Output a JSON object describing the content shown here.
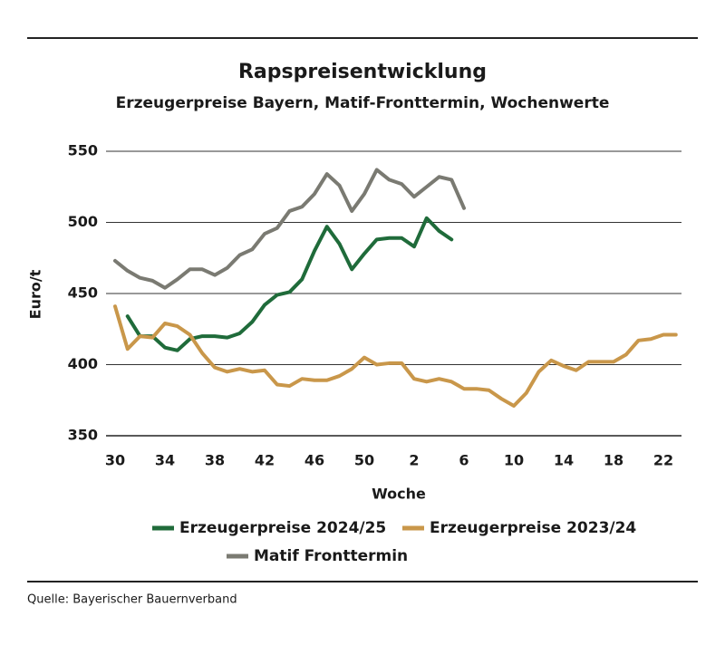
{
  "chart_data": {
    "type": "line",
    "title": "Rapspreisentwicklung",
    "subtitle": "Erzeugerpreise Bayern, Matif-Fronttermin, Wochenwerte",
    "y_label": "Euro/t",
    "x_label": "Woche",
    "source": "Quelle: Bayerischer Bauernverband",
    "categories": [
      30,
      null,
      null,
      null,
      34,
      null,
      null,
      null,
      38,
      null,
      null,
      null,
      42,
      null,
      null,
      null,
      46,
      null,
      null,
      null,
      50,
      null,
      null,
      null,
      2,
      null,
      null,
      null,
      6,
      null,
      null,
      null,
      10,
      null,
      null,
      null,
      14,
      null,
      null,
      null,
      18,
      null,
      null,
      null,
      22,
      null
    ],
    "series": [
      {
        "name": "Erzeugerpreise 2024/25",
        "color": "#1f6b3a",
        "values": [
          null,
          434,
          420,
          420,
          412,
          410,
          418,
          420,
          420,
          419,
          422,
          430,
          442,
          449,
          451,
          460,
          480,
          497,
          485,
          467,
          478,
          488,
          489,
          489,
          483,
          503,
          494,
          488,
          null,
          null,
          null,
          null,
          null,
          null,
          null,
          null,
          null,
          null,
          null,
          null,
          null,
          null,
          null,
          null,
          null,
          null
        ]
      },
      {
        "name": "Erzeugerpreise 2023/24",
        "color": "#c9974a",
        "values": [
          441,
          411,
          420,
          419,
          429,
          427,
          421,
          408,
          398,
          395,
          397,
          395,
          396,
          386,
          385,
          390,
          389,
          389,
          392,
          397,
          405,
          400,
          401,
          401,
          390,
          388,
          390,
          388,
          383,
          383,
          382,
          376,
          371,
          380,
          395,
          403,
          399,
          396,
          402,
          402,
          402,
          407,
          417,
          418,
          421,
          421
        ]
      },
      {
        "name": "Matif Fronttermin",
        "color": "#7a7a72",
        "values": [
          473,
          466,
          461,
          459,
          454,
          460,
          467,
          467,
          463,
          468,
          477,
          481,
          492,
          496,
          508,
          511,
          520,
          534,
          526,
          508,
          520,
          537,
          530,
          527,
          518,
          525,
          532,
          530,
          510,
          null,
          null,
          null,
          null,
          null,
          null,
          null,
          null,
          null,
          null,
          null,
          null,
          null,
          null,
          null,
          null,
          null
        ]
      }
    ],
    "ylim": [
      350,
      550
    ],
    "yticks": [
      350,
      400,
      450,
      500,
      550
    ],
    "grid": true
  }
}
